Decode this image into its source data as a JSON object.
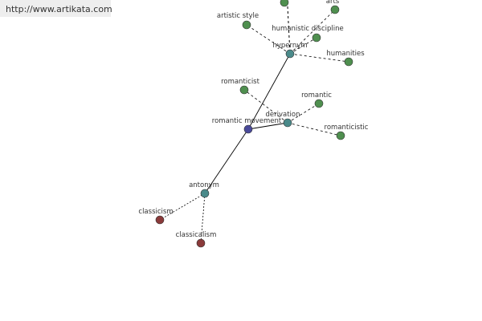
{
  "watermark": "http://www.artikata.com",
  "nodes": [
    {
      "label": "romantic movement"
    },
    {
      "label": "hypernym"
    },
    {
      "label": "derivation"
    },
    {
      "label": "antonym"
    },
    {
      "label": "artistic style"
    },
    {
      "label": "arts"
    },
    {
      "label": "humanistic discipline"
    },
    {
      "label": "humanities"
    },
    {
      "label": "romanticist"
    },
    {
      "label": "romantic"
    },
    {
      "label": "romanticistic"
    },
    {
      "label": "classicism"
    },
    {
      "label": "classicalism"
    }
  ]
}
